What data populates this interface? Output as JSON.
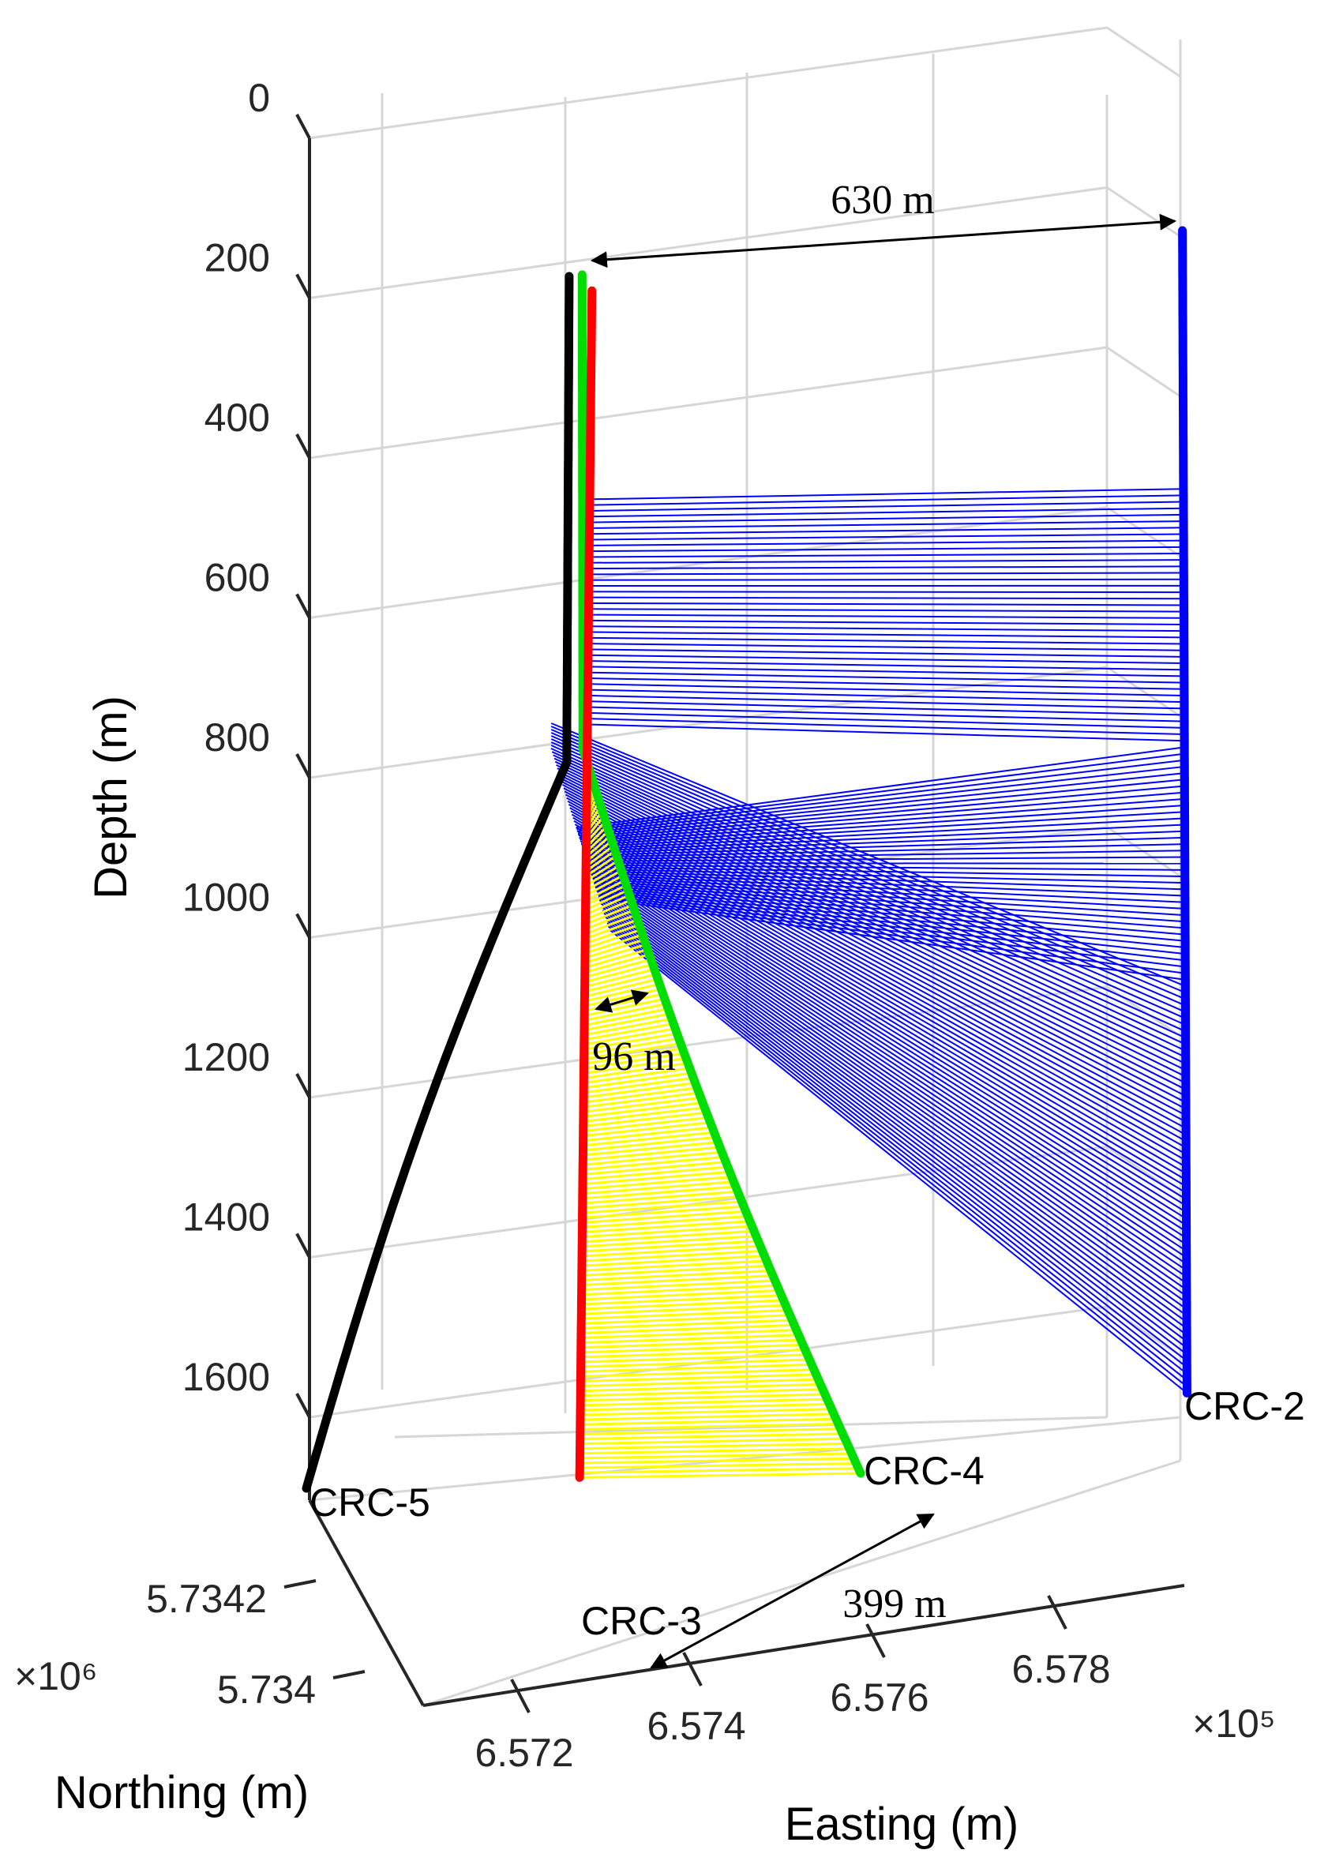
{
  "chart_data": {
    "type": "line3d",
    "title": "",
    "xlabel": "Easting (m)",
    "ylabel": "Northing (m)",
    "zlabel": "Depth (m)",
    "x_multiplier": "×10⁵",
    "y_multiplier": "×10⁶",
    "x_ticks": [
      "6.572",
      "6.574",
      "6.576",
      "6.578"
    ],
    "y_ticks": [
      "5.734",
      "5.7342"
    ],
    "z_ticks": [
      "0",
      "200",
      "400",
      "600",
      "800",
      "1000",
      "1200",
      "1400",
      "1600"
    ],
    "z_lim": [
      0,
      1700
    ],
    "z_reversed": true,
    "grid": true,
    "series": [
      {
        "name": "CRC-5",
        "color": "#000000",
        "top_depth": 220,
        "kickoff_depth": 840,
        "bottom_depth": 1700
      },
      {
        "name": "CRC-4",
        "color": "#00dd00",
        "top_depth": 220,
        "kickoff_depth": 820,
        "bottom_depth": 1700
      },
      {
        "name": "CRC-3",
        "color": "#ff0000",
        "top_depth": 220,
        "bottom_depth": 1700
      },
      {
        "name": "CRC-2",
        "color": "#0000ff",
        "top_depth": 160,
        "bottom_depth": 1600
      }
    ],
    "fills": [
      {
        "between": [
          "CRC-3",
          "CRC-2"
        ],
        "color": "#0000ff",
        "from_depth": 480,
        "to_depth": 1600
      },
      {
        "between": [
          "CRC-3",
          "CRC-4"
        ],
        "color": "#ffff00",
        "from_depth": 800,
        "to_depth": 1700
      }
    ],
    "annotations": [
      {
        "text": "630 m"
      },
      {
        "text": "96 m"
      },
      {
        "text": "399 m"
      }
    ]
  }
}
